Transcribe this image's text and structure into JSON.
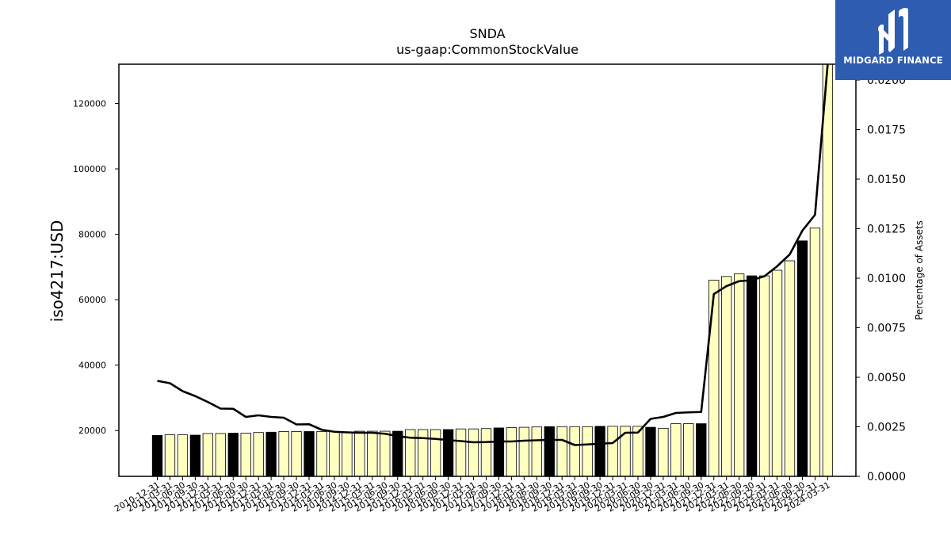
{
  "chart_data": {
    "type": "bar",
    "title": "SNDA",
    "subtitle": "us-gaap:CommonStockValue",
    "ylabel": "iso4217:USD",
    "y2label": "Percentage of Assets",
    "ylim": [
      6000,
      132000
    ],
    "y2lim": [
      0,
      0.0208
    ],
    "yticks": [
      20000,
      40000,
      60000,
      80000,
      100000,
      120000
    ],
    "y2ticks": [
      "0.0000",
      "0.0025",
      "0.0050",
      "0.0075",
      "0.0100",
      "0.0125",
      "0.0150",
      "0.0175",
      "0.0200"
    ],
    "categories": [
      "2010-12-31",
      "2011-03-31",
      "2011-06-30",
      "2011-09-30",
      "2011-12-31",
      "2012-03-31",
      "2012-06-30",
      "2012-09-30",
      "2012-12-31",
      "2013-03-31",
      "2013-06-30",
      "2013-09-30",
      "2013-12-31",
      "2014-03-31",
      "2014-06-30",
      "2014-09-30",
      "2014-12-31",
      "2015-03-31",
      "2015-06-30",
      "2015-09-30",
      "2015-12-31",
      "2016-03-31",
      "2016-06-30",
      "2016-09-30",
      "2016-12-31",
      "2017-03-31",
      "2017-06-30",
      "2017-09-30",
      "2017-12-31",
      "2018-03-31",
      "2018-06-30",
      "2018-09-30",
      "2018-12-31",
      "2019-03-31",
      "2019-06-30",
      "2019-09-30",
      "2019-12-31",
      "2020-03-31",
      "2020-06-30",
      "2020-09-30",
      "2020-12-31",
      "2021-03-31",
      "2021-06-30",
      "2021-09-30",
      "2021-12-31",
      "2022-03-31",
      "2022-06-30",
      "2022-09-30",
      "2022-12-31",
      "2023-03-31",
      "2023-06-30",
      "2023-09-30",
      "2023-12-31",
      "2024-03-31"
    ],
    "values": [
      18500,
      18700,
      18700,
      18600,
      19100,
      19100,
      19200,
      19200,
      19400,
      19500,
      19700,
      19700,
      19700,
      19700,
      19700,
      19600,
      19800,
      19800,
      19800,
      19800,
      20300,
      20300,
      20300,
      20300,
      20500,
      20500,
      20600,
      20800,
      20900,
      21000,
      21100,
      21200,
      21200,
      21200,
      21200,
      21300,
      21300,
      21300,
      21300,
      21000,
      20700,
      22100,
      22100,
      22100,
      66000,
      67100,
      67900,
      67300,
      67300,
      69000,
      71900,
      78000,
      81900,
      132000
    ],
    "bar_colors": [
      "#000000",
      "#ffffc0",
      "#ffffc0",
      "#000000",
      "#ffffc0",
      "#ffffc0",
      "#000000",
      "#ffffc0",
      "#ffffc0",
      "#000000",
      "#ffffc0",
      "#ffffc0",
      "#000000",
      "#ffffc0",
      "#ffffc0",
      "#ffffc0",
      "#ffffc0",
      "#ffffc0",
      "#ffffc0",
      "#000000",
      "#ffffc0",
      "#ffffc0",
      "#ffffc0",
      "#000000",
      "#ffffc0",
      "#ffffc0",
      "#ffffc0",
      "#000000",
      "#ffffc0",
      "#ffffc0",
      "#ffffc0",
      "#000000",
      "#ffffc0",
      "#ffffc0",
      "#ffffc0",
      "#000000",
      "#ffffc0",
      "#ffffc0",
      "#ffffc0",
      "#000000",
      "#ffffc0",
      "#ffffc0",
      "#ffffc0",
      "#000000",
      "#ffffc0",
      "#ffffc0",
      "#ffffc0",
      "#000000",
      "#ffffc0",
      "#ffffc0",
      "#ffffc0",
      "#000000",
      "#ffffc0",
      "#ffffc0"
    ],
    "series": [
      {
        "axis": "right",
        "values": [
          0.00482,
          0.0047,
          0.0043,
          0.00405,
          0.00375,
          0.00342,
          0.00341,
          0.003,
          0.00308,
          0.003,
          0.00296,
          0.00262,
          0.00263,
          0.00235,
          0.00225,
          0.00222,
          0.0022,
          0.0022,
          0.00215,
          0.00203,
          0.00195,
          0.00193,
          0.00189,
          0.00183,
          0.00178,
          0.00172,
          0.00173,
          0.00176,
          0.00176,
          0.0018,
          0.00182,
          0.00184,
          0.00184,
          0.00158,
          0.00161,
          0.00165,
          0.00168,
          0.0022,
          0.00221,
          0.0029,
          0.003,
          0.0032,
          0.00323,
          0.00325,
          0.0092,
          0.0096,
          0.00985,
          0.0099,
          0.0101,
          0.0106,
          0.0112,
          0.0124,
          0.0132,
          0.0208
        ]
      }
    ],
    "colors": {
      "bar_edge": "#000000",
      "line": "#000000"
    },
    "legend": "none",
    "grid": false
  },
  "logo": {
    "text": "MIDGARD FINANCE",
    "bg": "#2d5cb0"
  }
}
